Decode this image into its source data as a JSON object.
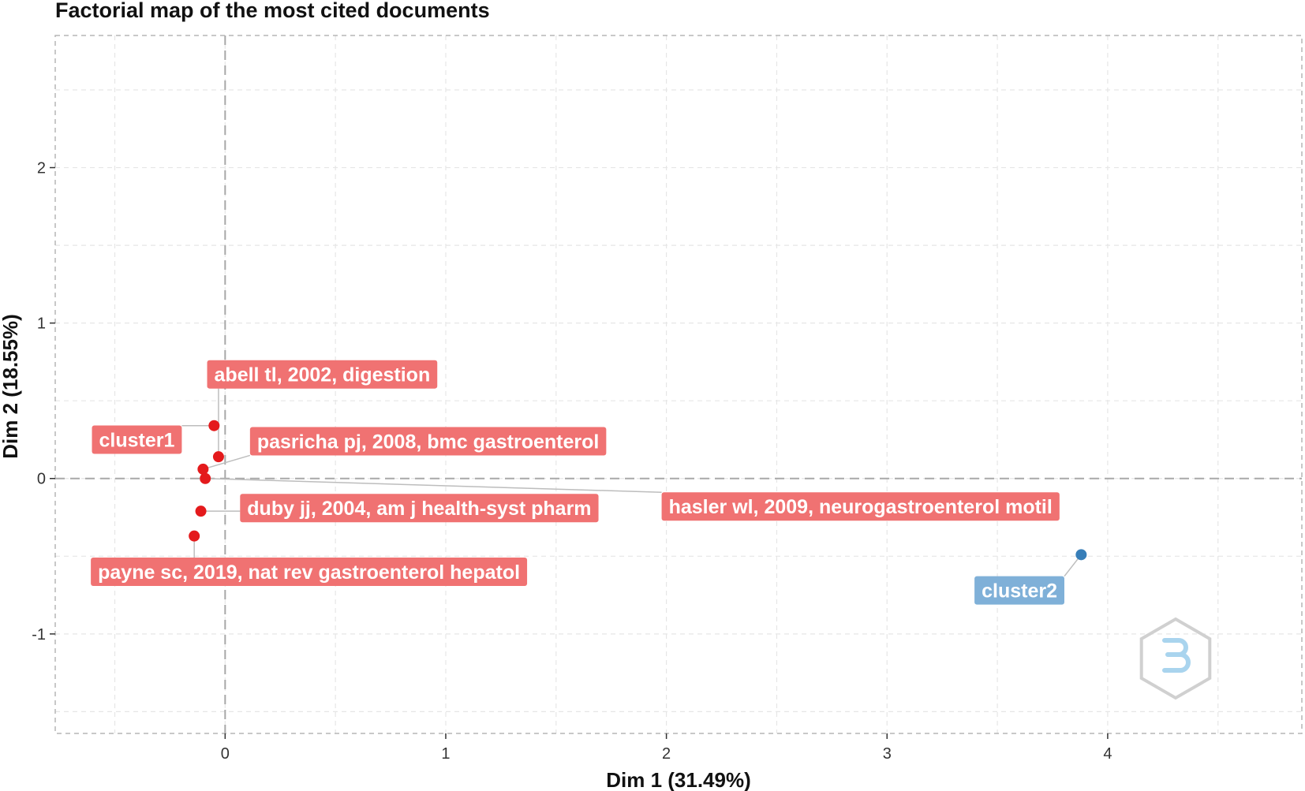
{
  "chart_data": {
    "type": "scatter",
    "title": "Factorial map of the most cited documents",
    "xlabel": "Dim 1 (31.49%)",
    "ylabel": "Dim 2 (18.55%)",
    "xlim": [
      -0.77,
      4.88
    ],
    "ylim": [
      -1.64,
      2.85
    ],
    "xticks": [
      0,
      1,
      2,
      3,
      4
    ],
    "yticks": [
      -1,
      0,
      1,
      2
    ],
    "grid": true,
    "reference_lines": {
      "x": 0,
      "y": 0
    },
    "colors": {
      "cluster1": "#E41A1C",
      "cluster1_label": "#F07272",
      "cluster2": "#377EB8",
      "cluster2_label": "#7FB0D8",
      "grid": "#E6E6E6",
      "axis": "#A8A8A8",
      "panel_border": "#B5B5B5",
      "leader_line": "#BDBDBD"
    },
    "series": [
      {
        "name": "cluster1",
        "points": [
          {
            "x": -0.05,
            "y": 0.34,
            "label": "cluster1"
          },
          {
            "x": -0.03,
            "y": 0.14,
            "label": "abell tl, 2002, digestion"
          },
          {
            "x": -0.1,
            "y": 0.06,
            "label": "pasricha pj, 2008, bmc gastroenterol"
          },
          {
            "x": -0.09,
            "y": 0.0,
            "label": "hasler wl, 2009, neurogastroenterol motil"
          },
          {
            "x": -0.11,
            "y": -0.21,
            "label": "duby jj, 2004, am j health-syst pharm"
          },
          {
            "x": -0.14,
            "y": -0.37,
            "label": "payne sc, 2019, nat rev gastroenterol hepatol"
          }
        ]
      },
      {
        "name": "cluster2",
        "points": [
          {
            "x": 3.88,
            "y": -0.49,
            "label": "cluster2"
          }
        ]
      }
    ],
    "labels": [
      {
        "text": "abell tl, 2002, digestion",
        "series": 0,
        "point": 1,
        "at_x": 0.44,
        "at_y": 0.67
      },
      {
        "text": "cluster1",
        "series": 0,
        "point": 0,
        "at_x": -0.4,
        "at_y": 0.25
      },
      {
        "text": "pasricha pj, 2008, bmc gastroenterol",
        "series": 0,
        "point": 2,
        "at_x": 0.92,
        "at_y": 0.24
      },
      {
        "text": "duby jj, 2004, am j health-syst pharm",
        "series": 0,
        "point": 4,
        "at_x": 0.88,
        "at_y": -0.19
      },
      {
        "text": "hasler wl, 2009, neurogastroenterol motil",
        "series": 0,
        "point": 3,
        "at_x": 2.88,
        "at_y": -0.18
      },
      {
        "text": "payne sc, 2019, nat rev gastroenterol hepatol",
        "series": 0,
        "point": 5,
        "at_x": 0.38,
        "at_y": -0.6
      },
      {
        "text": "cluster2",
        "series": 1,
        "point": 0,
        "at_x": 3.6,
        "at_y": -0.72
      }
    ]
  }
}
